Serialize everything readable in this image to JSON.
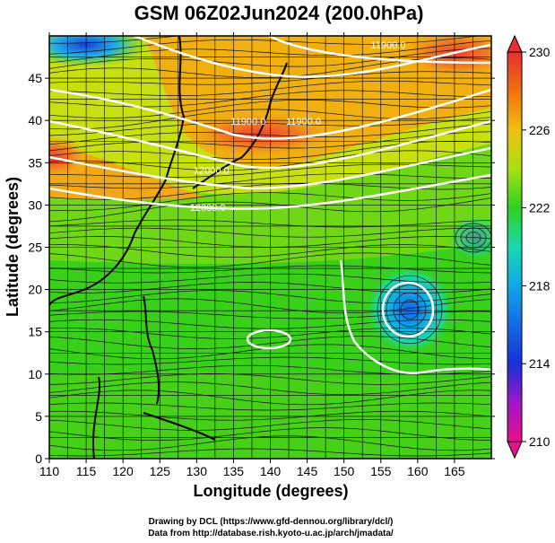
{
  "title": "GSM 06Z02Jun2024 (200.0hPa)",
  "chart_data": {
    "type": "heatmap",
    "title": "GSM 06Z02Jun2024 (200.0hPa)",
    "xlabel": "Longitude (degrees)",
    "ylabel": "Latitude (degrees)",
    "xlim": [
      110,
      170
    ],
    "ylim": [
      0,
      50
    ],
    "x_ticks": [
      "110",
      "115",
      "120",
      "125",
      "130",
      "135",
      "140",
      "145",
      "150",
      "155",
      "160",
      "165"
    ],
    "y_ticks": [
      "0",
      "5",
      "10",
      "15",
      "20",
      "25",
      "30",
      "35",
      "40",
      "45"
    ],
    "colorbar": {
      "min": 210,
      "max": 230,
      "ticks": [
        "210",
        "214",
        "218",
        "222",
        "226",
        "230"
      ],
      "colors": [
        "#e8108c",
        "#a018c8",
        "#1830d8",
        "#10a8e8",
        "#18d8b0",
        "#30d020",
        "#a8e010",
        "#f0c010",
        "#f07010",
        "#e83030"
      ]
    },
    "contour_labels": [
      {
        "text": "11900.0",
        "lon": 137,
        "lat": 39.5
      },
      {
        "text": "11900.0",
        "lon": 144.5,
        "lat": 39.5
      },
      {
        "text": "11900.0",
        "lon": 156,
        "lat": 48.5
      },
      {
        "text": "12000.0",
        "lon": 132,
        "lat": 33.7
      },
      {
        "text": "12000.0",
        "lon": 131.5,
        "lat": 29.3
      }
    ]
  },
  "credits": {
    "line1": "Drawing by DCL (https://www.gfd-dennou.org/library/dcl/)",
    "line2": "Data from http://database.rish.kyoto-u.ac.jp/arch/jmadata/"
  }
}
